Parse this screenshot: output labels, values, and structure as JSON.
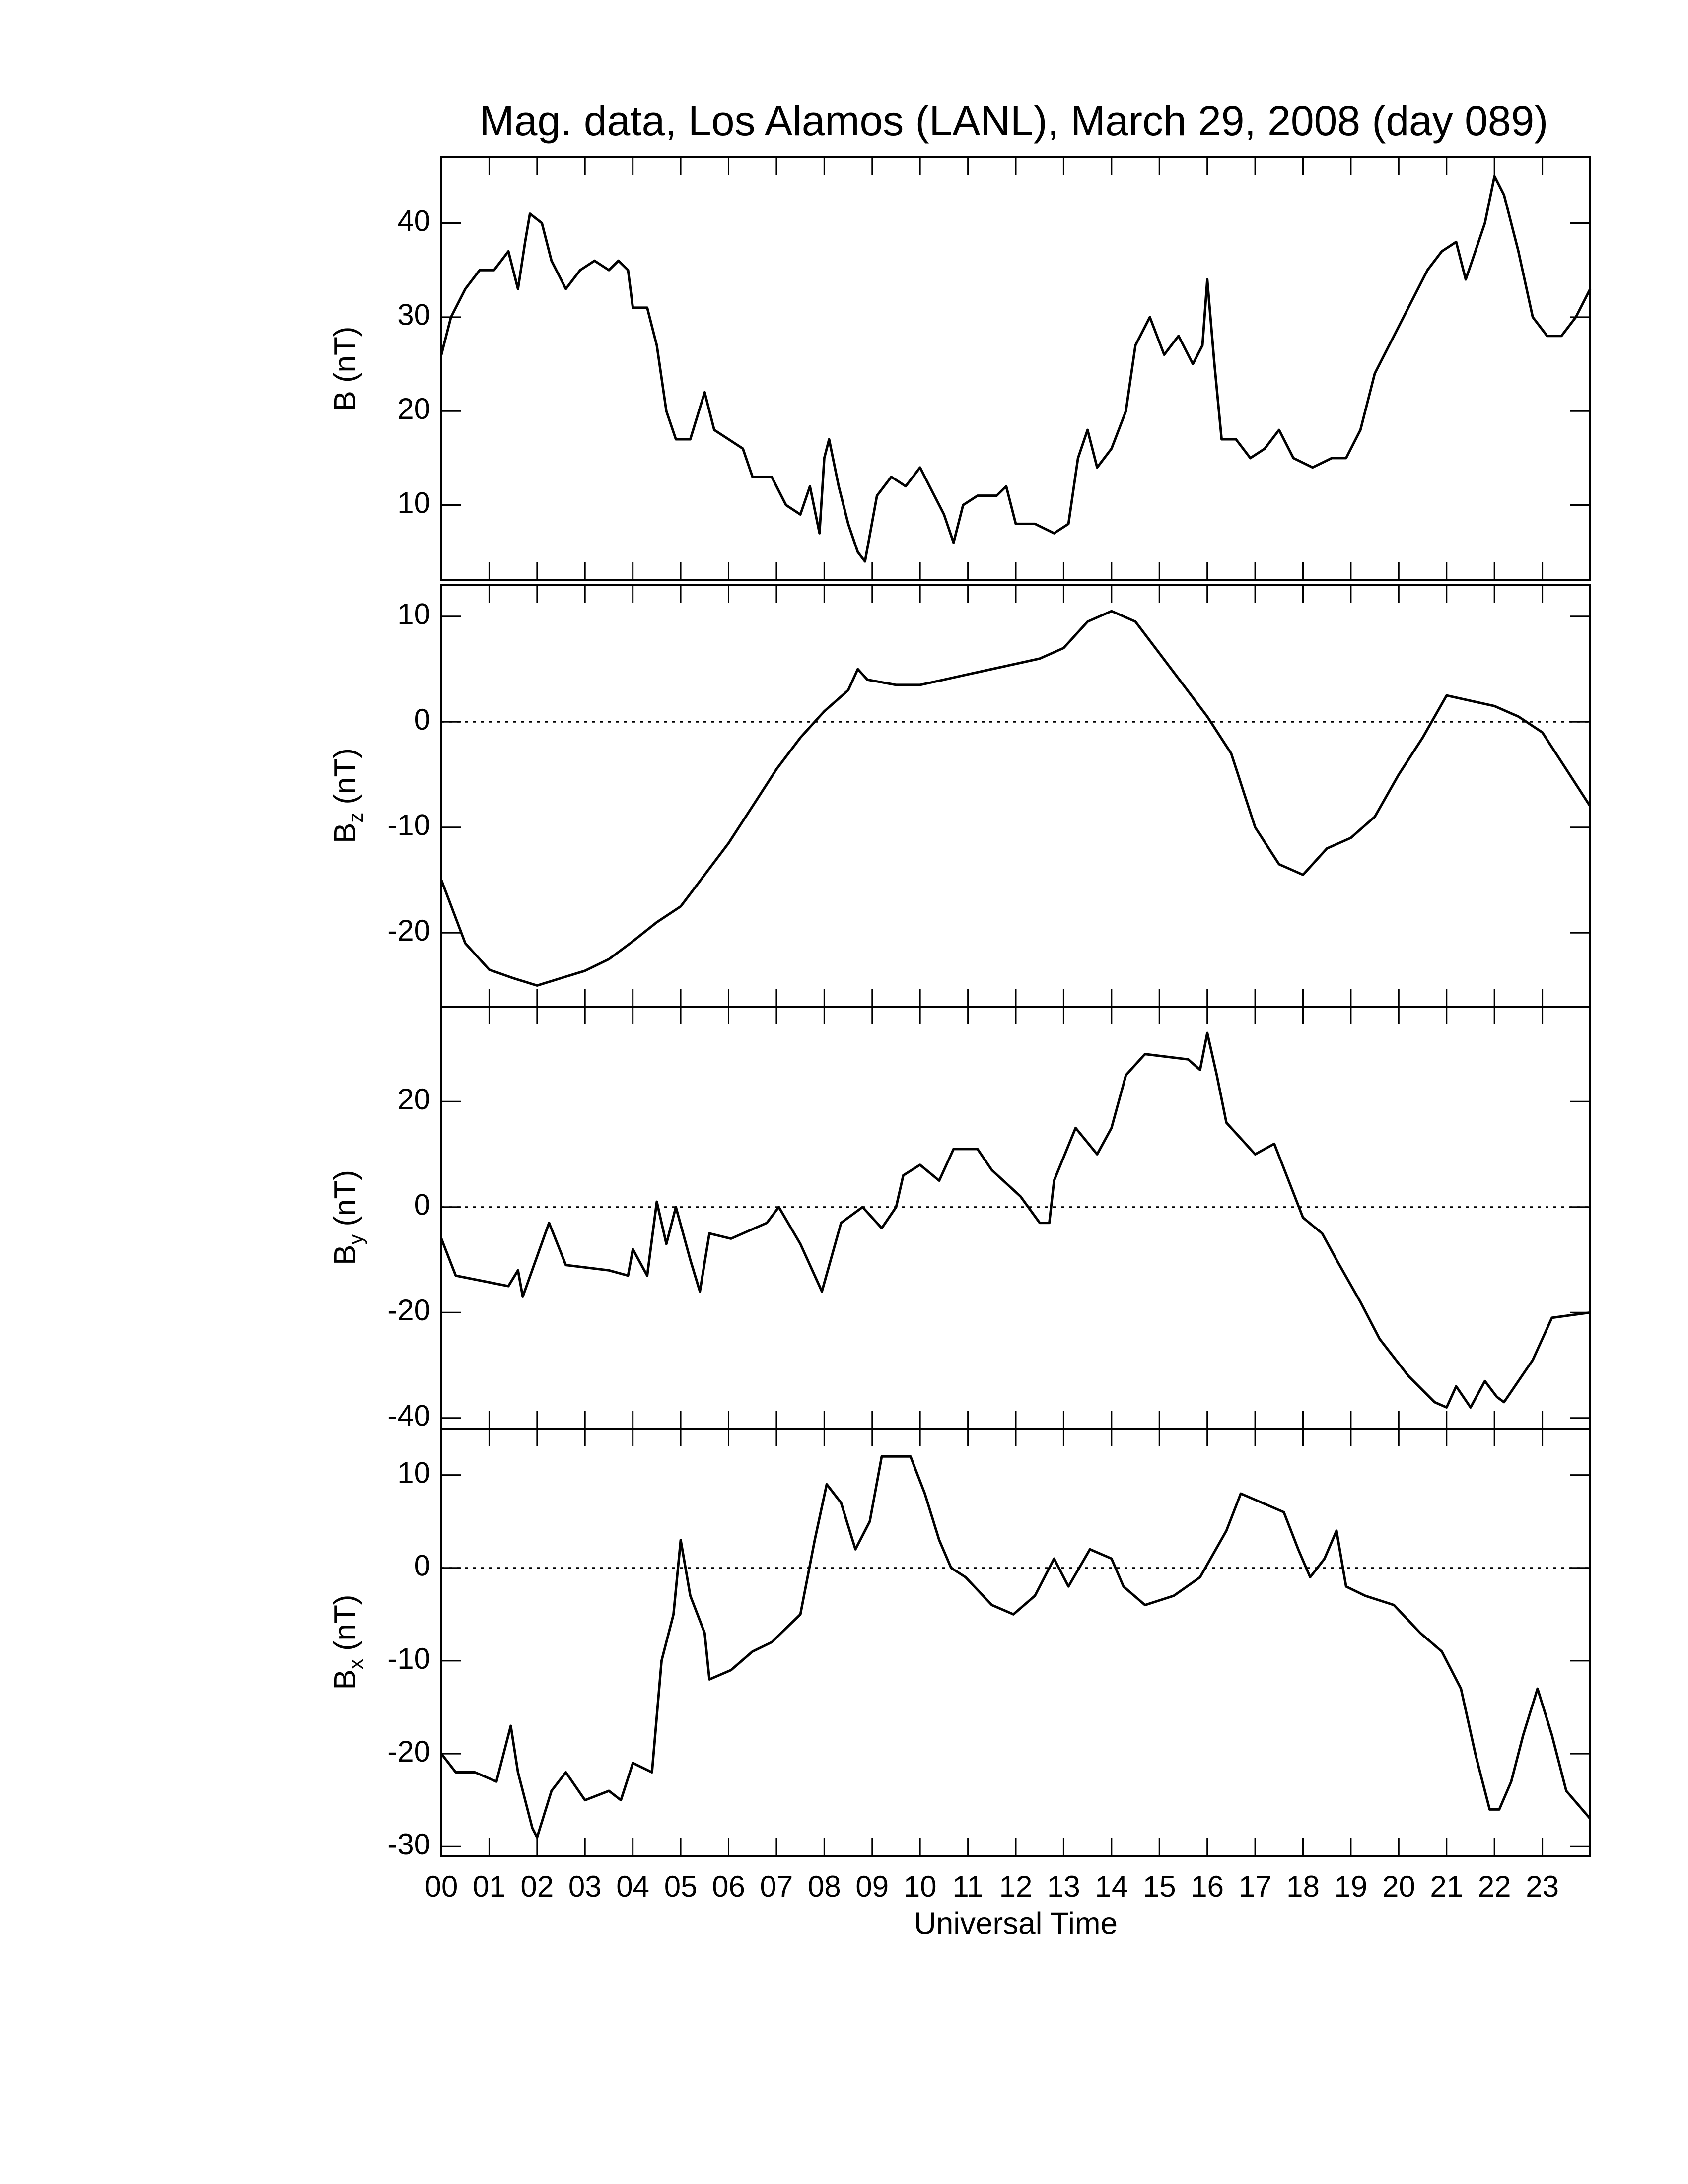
{
  "chart_data": [
    {
      "type": "line",
      "title": "Mag. data, Los Alamos (LANL), March 29, 2008 (day 089)",
      "ylabel": {
        "symbol": "B",
        "unit": "(nT)"
      },
      "color": "#000000",
      "xlim": [
        0,
        24
      ],
      "ylim": [
        2,
        47
      ],
      "yticks": [
        10,
        20,
        30,
        40
      ],
      "x": [
        0,
        0.2,
        0.5,
        0.8,
        1.1,
        1.4,
        1.6,
        1.75,
        1.85,
        2.1,
        2.3,
        2.6,
        2.9,
        3.2,
        3.5,
        3.7,
        3.9,
        4.0,
        4.3,
        4.5,
        4.7,
        4.9,
        5.2,
        5.5,
        5.7,
        6.0,
        6.3,
        6.5,
        6.9,
        7.2,
        7.5,
        7.7,
        7.9,
        8.0,
        8.1,
        8.3,
        8.5,
        8.7,
        8.85,
        9.1,
        9.4,
        9.7,
        10.0,
        10.2,
        10.5,
        10.7,
        10.9,
        11.2,
        11.6,
        11.8,
        12.0,
        12.4,
        12.8,
        13.1,
        13.3,
        13.5,
        13.7,
        14.0,
        14.3,
        14.5,
        14.8,
        15.1,
        15.4,
        15.7,
        15.9,
        16.0,
        16.15,
        16.3,
        16.6,
        16.9,
        17.2,
        17.5,
        17.8,
        18.2,
        18.6,
        18.9,
        19.2,
        19.5,
        19.9,
        20.3,
        20.6,
        20.9,
        21.2,
        21.4,
        21.6,
        21.8,
        22.0,
        22.2,
        22.5,
        22.8,
        23.1,
        23.4,
        23.7,
        24
      ],
      "values": [
        26,
        30,
        33,
        35,
        35,
        37,
        33,
        38,
        41,
        40,
        36,
        33,
        35,
        36,
        35,
        36,
        35,
        31,
        31,
        27,
        20,
        17,
        17,
        22,
        18,
        17,
        16,
        13,
        13,
        10,
        9,
        12,
        7,
        15,
        17,
        12,
        8,
        5,
        4,
        11,
        13,
        12,
        14,
        12,
        9,
        6,
        10,
        11,
        11,
        12,
        8,
        8,
        7,
        8,
        15,
        18,
        14,
        16,
        20,
        27,
        30,
        26,
        28,
        25,
        27,
        34,
        25,
        17,
        17,
        15,
        16,
        18,
        15,
        14,
        15,
        15,
        18,
        24,
        28,
        32,
        35,
        37,
        38,
        34,
        37,
        40,
        45,
        43,
        37,
        30,
        28,
        28,
        30,
        33
      ]
    },
    {
      "type": "line",
      "ylabel": {
        "symbol": "B",
        "subscript": "z",
        "unit": "(nT)"
      },
      "color": "#000000",
      "xlim": [
        0,
        24
      ],
      "ylim": [
        -27,
        13
      ],
      "yticks": [
        -20,
        -10,
        0,
        10
      ],
      "reference_line": 0,
      "x": [
        0,
        0.5,
        1,
        1.5,
        2,
        2.5,
        3,
        3.5,
        4,
        4.5,
        5,
        5.5,
        6,
        6.5,
        7,
        7.5,
        8,
        8.5,
        8.7,
        8.9,
        9.5,
        10,
        10.5,
        11,
        11.5,
        12,
        12.5,
        13,
        13.5,
        14,
        14.5,
        15,
        15.5,
        16,
        16.5,
        17,
        17.5,
        18,
        18.5,
        19,
        19.5,
        20,
        20.5,
        21,
        21.5,
        22,
        22.5,
        23,
        23.5,
        24
      ],
      "values": [
        -15,
        -21,
        -23.5,
        -24.3,
        -25,
        -24.3,
        -23.6,
        -22.5,
        -20.8,
        -19,
        -17.5,
        -14.5,
        -11.5,
        -8,
        -4.5,
        -1.5,
        1,
        3,
        5,
        4,
        3.5,
        3.5,
        4,
        4.5,
        5,
        5.5,
        6,
        7,
        9.5,
        10.5,
        9.5,
        6.5,
        3.5,
        0.5,
        -3,
        -10,
        -13.5,
        -14.5,
        -12,
        -11,
        -9,
        -5,
        -1.5,
        2.5,
        2,
        1.5,
        0.5,
        -1,
        -4.5,
        -8
      ]
    },
    {
      "type": "line",
      "ylabel": {
        "symbol": "B",
        "subscript": "y",
        "unit": "(nT)"
      },
      "color": "#000000",
      "xlim": [
        0,
        24
      ],
      "ylim": [
        -42,
        38
      ],
      "yticks": [
        -40,
        -20,
        0,
        20
      ],
      "reference_line": 0,
      "x": [
        0,
        0.3,
        1.4,
        1.6,
        1.7,
        2.25,
        2.6,
        3.5,
        3.9,
        4.0,
        4.3,
        4.5,
        4.7,
        4.9,
        5.2,
        5.4,
        5.6,
        6.05,
        6.8,
        7.05,
        7.5,
        7.95,
        8.35,
        8.8,
        9.2,
        9.5,
        9.65,
        10.0,
        10.4,
        10.7,
        11.2,
        11.5,
        12.1,
        12.5,
        12.7,
        12.8,
        13.25,
        13.7,
        14.0,
        14.3,
        14.7,
        15.6,
        15.85,
        16.0,
        16.2,
        16.4,
        16.7,
        17.0,
        17.4,
        17.7,
        18.0,
        18.4,
        18.7,
        19.2,
        19.6,
        20.2,
        20.75,
        21.0,
        21.2,
        21.5,
        21.8,
        22.05,
        22.2,
        22.8,
        23.2,
        24
      ],
      "values": [
        -6,
        -13,
        -15,
        -12,
        -17,
        -3,
        -11,
        -12,
        -13,
        -8,
        -13,
        1,
        -7,
        0,
        -10,
        -16,
        -5,
        -6,
        -3,
        0,
        -7,
        -16,
        -3,
        0,
        -4,
        0,
        6,
        8,
        5,
        11,
        11,
        7,
        2,
        -3,
        -3,
        5,
        15,
        10,
        15,
        25,
        29,
        28,
        26,
        33,
        25,
        16,
        13,
        10,
        12,
        5,
        -2,
        -5,
        -10,
        -18,
        -25,
        -32,
        -37,
        -38,
        -34,
        -38,
        -33,
        -36,
        -37,
        -29,
        -21,
        -20
      ]
    },
    {
      "type": "line",
      "ylabel": {
        "symbol": "B",
        "subscript": "x",
        "unit": "(nT)"
      },
      "color": "#000000",
      "xlim": [
        0,
        24
      ],
      "ylim": [
        -31,
        15
      ],
      "yticks": [
        -30,
        -20,
        -10,
        0,
        10
      ],
      "reference_line": 0,
      "xlabel": "Universal Time",
      "xticks": [
        {
          "value": 0,
          "label": "00"
        },
        {
          "value": 1,
          "label": "01"
        },
        {
          "value": 2,
          "label": "02"
        },
        {
          "value": 3,
          "label": "03"
        },
        {
          "value": 4,
          "label": "04"
        },
        {
          "value": 5,
          "label": "05"
        },
        {
          "value": 6,
          "label": "06"
        },
        {
          "value": 7,
          "label": "07"
        },
        {
          "value": 8,
          "label": "08"
        },
        {
          "value": 9,
          "label": "09"
        },
        10,
        11,
        12,
        13,
        14,
        15,
        16,
        17,
        18,
        19,
        20,
        21,
        22,
        23
      ],
      "x": [
        0,
        0.3,
        0.7,
        1.15,
        1.45,
        1.6,
        1.9,
        2.0,
        2.3,
        2.6,
        3.0,
        3.5,
        3.75,
        4.0,
        4.4,
        4.6,
        4.85,
        5.0,
        5.2,
        5.5,
        5.6,
        6.05,
        6.5,
        6.9,
        7.5,
        7.8,
        8.05,
        8.35,
        8.65,
        8.95,
        9.2,
        9.8,
        10.1,
        10.4,
        10.65,
        10.95,
        11.5,
        11.95,
        12.4,
        12.8,
        13.1,
        13.55,
        14.0,
        14.25,
        14.7,
        15.3,
        15.85,
        16.4,
        16.7,
        17.15,
        17.6,
        17.9,
        18.15,
        18.45,
        18.7,
        18.9,
        19.3,
        19.9,
        20.45,
        20.9,
        21.3,
        21.6,
        21.9,
        22.1,
        22.35,
        22.6,
        22.9,
        23.2,
        23.5,
        24
      ],
      "values": [
        -20,
        -22,
        -22,
        -23,
        -17,
        -22,
        -28,
        -29,
        -24,
        -22,
        -25,
        -24,
        -25,
        -21,
        -22,
        -10,
        -5,
        3,
        -3,
        -7,
        -12,
        -11,
        -9,
        -8,
        -5,
        3,
        9,
        7,
        2,
        5,
        12,
        12,
        8,
        3,
        0,
        -1,
        -4,
        -5,
        -3,
        1,
        -2,
        2,
        1,
        -2,
        -4,
        -3,
        -1,
        4,
        8,
        7,
        6,
        2,
        -1,
        1,
        4,
        -2,
        -3,
        -4,
        -7,
        -9,
        -13,
        -20,
        -26,
        -26,
        -23,
        -18,
        -13,
        -18,
        -24,
        -27
      ]
    }
  ]
}
